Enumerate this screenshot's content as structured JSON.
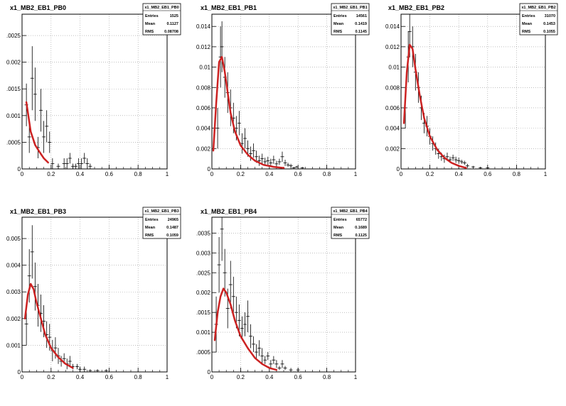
{
  "panels": [
    {
      "title": "x1_MB2_EB1_PB0",
      "stats": {
        "name": "x1_MB2_EB1_PB0",
        "rows": [
          [
            "Entries",
            "1525"
          ],
          [
            "Mean",
            "0.1127"
          ],
          [
            "RMS",
            "0.08708"
          ]
        ]
      },
      "ytick_labels": [
        "0",
        ".0005",
        "0.001",
        ".0015",
        "0.002",
        ".0025"
      ]
    },
    {
      "title": "x1_MB2_EB1_PB1",
      "stats": {
        "name": "x1_MB2_EB1_PB1",
        "rows": [
          [
            "Entries",
            "14561"
          ],
          [
            "Mean",
            "0.1419"
          ],
          [
            "RMS",
            "0.1145"
          ]
        ]
      },
      "ytick_labels": [
        "0",
        "0.002",
        "0.004",
        "0.006",
        "0.008",
        "0.01",
        "0.012",
        "0.014"
      ]
    },
    {
      "title": "x1_MB2_EB1_PB2",
      "stats": {
        "name": "x1_MB2_EB1_PB2",
        "rows": [
          [
            "Entries",
            "31070"
          ],
          [
            "Mean",
            "0.1453"
          ],
          [
            "RMS",
            "0.1055"
          ]
        ]
      },
      "ytick_labels": [
        "0",
        "0.002",
        "0.004",
        "0.006",
        "0.008",
        "0.01",
        "0.012",
        "0.014"
      ]
    },
    {
      "title": "x1_MB2_EB1_PB3",
      "stats": {
        "name": "x1_MB2_EB1_PB3",
        "rows": [
          [
            "Entries",
            "24965"
          ],
          [
            "Mean",
            "0.1487"
          ],
          [
            "RMS",
            "0.1059"
          ]
        ]
      },
      "ytick_labels": [
        "0",
        "0.001",
        "0.002",
        "0.003",
        "0.004",
        "0.005"
      ]
    },
    {
      "title": "x1_MB2_EB1_PB4",
      "stats": {
        "name": "x1_MB2_EB1_PB4",
        "rows": [
          [
            "Entries",
            "65772"
          ],
          [
            "Mean",
            "0.1689"
          ],
          [
            "RMS",
            "0.1125"
          ]
        ]
      },
      "ytick_labels": [
        "0",
        ".0005",
        "0.001",
        ".0015",
        "0.002",
        ".0025",
        "0.003",
        ".0035"
      ]
    }
  ],
  "xtick_labels": [
    "0",
    "0.2",
    "0.4",
    "0.6",
    "0.8",
    "1"
  ],
  "colors": {
    "fit": "#cc2222",
    "points": "#000000",
    "grid": "#999999",
    "frame": "#000000"
  },
  "chart_data": [
    {
      "type": "scatter",
      "title": "x1_MB2_EB1_PB0",
      "xlim": [
        0,
        1
      ],
      "ylim": [
        0,
        0.0029
      ],
      "grid": true,
      "points": [
        [
          0.03,
          0.0012,
          0.0004
        ],
        [
          0.05,
          0.0006,
          0.0003
        ],
        [
          0.07,
          0.0017,
          0.0006
        ],
        [
          0.09,
          0.0014,
          0.0005
        ],
        [
          0.11,
          0.0004,
          0.0002
        ],
        [
          0.13,
          0.0011,
          0.0004
        ],
        [
          0.15,
          0.0006,
          0.0003
        ],
        [
          0.17,
          0.0008,
          0.0003
        ],
        [
          0.19,
          0.0005,
          0.0002
        ],
        [
          0.21,
          0.0001,
          0.0001
        ],
        [
          0.25,
          5e-05,
          5e-05
        ],
        [
          0.29,
          0.0001,
          0.0001
        ],
        [
          0.31,
          0.0001,
          0.0001
        ],
        [
          0.33,
          0.0002,
          0.0001
        ],
        [
          0.35,
          5e-05,
          5e-05
        ],
        [
          0.37,
          5e-05,
          5e-05
        ],
        [
          0.39,
          0.0001,
          0.0001
        ],
        [
          0.41,
          0.0001,
          0.0001
        ],
        [
          0.43,
          0.0002,
          0.0001
        ],
        [
          0.45,
          0.0001,
          0.0001
        ],
        [
          0.47,
          5e-05,
          5e-05
        ]
      ],
      "fit": [
        [
          0.03,
          0.00125
        ],
        [
          0.06,
          0.0007
        ],
        [
          0.09,
          0.00045
        ],
        [
          0.12,
          0.00032
        ],
        [
          0.15,
          0.0002
        ],
        [
          0.18,
          0.00012
        ]
      ]
    },
    {
      "type": "scatter",
      "title": "x1_MB2_EB1_PB1",
      "xlim": [
        0,
        1
      ],
      "ylim": [
        0,
        0.0152
      ],
      "grid": true,
      "points": [
        [
          0.04,
          0.004,
          0.002
        ],
        [
          0.06,
          0.011,
          0.003
        ],
        [
          0.07,
          0.012,
          0.0025
        ],
        [
          0.09,
          0.009,
          0.002
        ],
        [
          0.11,
          0.0075,
          0.002
        ],
        [
          0.13,
          0.006,
          0.0018
        ],
        [
          0.15,
          0.005,
          0.0015
        ],
        [
          0.17,
          0.004,
          0.0012
        ],
        [
          0.19,
          0.0045,
          0.0012
        ],
        [
          0.21,
          0.0025,
          0.001
        ],
        [
          0.23,
          0.003,
          0.001
        ],
        [
          0.25,
          0.002,
          0.0008
        ],
        [
          0.27,
          0.0015,
          0.0007
        ],
        [
          0.29,
          0.0018,
          0.0007
        ],
        [
          0.31,
          0.0012,
          0.0006
        ],
        [
          0.33,
          0.0008,
          0.0005
        ],
        [
          0.35,
          0.001,
          0.0005
        ],
        [
          0.37,
          0.0007,
          0.0004
        ],
        [
          0.39,
          0.0008,
          0.0004
        ],
        [
          0.41,
          0.0006,
          0.0004
        ],
        [
          0.43,
          0.0009,
          0.0004
        ],
        [
          0.45,
          0.0005,
          0.0003
        ],
        [
          0.47,
          0.0007,
          0.0003
        ],
        [
          0.49,
          0.0012,
          0.0005
        ],
        [
          0.51,
          0.0006,
          0.0003
        ],
        [
          0.53,
          0.0004,
          0.0002
        ],
        [
          0.55,
          0.0003,
          0.0002
        ],
        [
          0.57,
          0.0001,
          0.0001
        ],
        [
          0.59,
          0.0002,
          0.0001
        ],
        [
          0.63,
          0.0001,
          0.0001
        ]
      ],
      "fit": [
        [
          0.01,
          0.0018
        ],
        [
          0.03,
          0.0065
        ],
        [
          0.05,
          0.0105
        ],
        [
          0.07,
          0.011
        ],
        [
          0.09,
          0.0095
        ],
        [
          0.11,
          0.0075
        ],
        [
          0.13,
          0.0055
        ],
        [
          0.16,
          0.0037
        ],
        [
          0.2,
          0.0023
        ],
        [
          0.25,
          0.0014
        ],
        [
          0.3,
          0.0008
        ],
        [
          0.36,
          0.0004
        ],
        [
          0.43,
          0.0002
        ],
        [
          0.5,
          0.0001
        ]
      ]
    },
    {
      "type": "scatter",
      "title": "x1_MB2_EB1_PB2",
      "xlim": [
        0,
        1
      ],
      "ylim": [
        0,
        0.0152
      ],
      "grid": true,
      "points": [
        [
          0.03,
          0.006,
          0.002
        ],
        [
          0.05,
          0.011,
          0.0025
        ],
        [
          0.06,
          0.0135,
          0.0025
        ],
        [
          0.08,
          0.012,
          0.002
        ],
        [
          0.1,
          0.0095,
          0.0018
        ],
        [
          0.12,
          0.008,
          0.0015
        ],
        [
          0.14,
          0.006,
          0.0012
        ],
        [
          0.16,
          0.0045,
          0.001
        ],
        [
          0.18,
          0.0042,
          0.001
        ],
        [
          0.2,
          0.0032,
          0.0008
        ],
        [
          0.22,
          0.0025,
          0.0007
        ],
        [
          0.24,
          0.002,
          0.0006
        ],
        [
          0.26,
          0.0015,
          0.0005
        ],
        [
          0.28,
          0.0012,
          0.0004
        ],
        [
          0.3,
          0.001,
          0.0004
        ],
        [
          0.32,
          0.0012,
          0.0004
        ],
        [
          0.34,
          0.0009,
          0.0003
        ],
        [
          0.36,
          0.0011,
          0.0003
        ],
        [
          0.38,
          0.0009,
          0.0003
        ],
        [
          0.4,
          0.0008,
          0.0003
        ],
        [
          0.42,
          0.0007,
          0.0002
        ],
        [
          0.44,
          0.0006,
          0.0002
        ],
        [
          0.46,
          0.0003,
          0.0002
        ],
        [
          0.5,
          0.0002,
          0.0001
        ],
        [
          0.55,
          0.0001,
          0.0001
        ],
        [
          0.6,
          0.0001,
          0.0001
        ]
      ],
      "fit": [
        [
          0.02,
          0.0045
        ],
        [
          0.04,
          0.0095
        ],
        [
          0.06,
          0.0122
        ],
        [
          0.08,
          0.0118
        ],
        [
          0.1,
          0.0098
        ],
        [
          0.13,
          0.0072
        ],
        [
          0.16,
          0.005
        ],
        [
          0.2,
          0.0032
        ],
        [
          0.25,
          0.0019
        ],
        [
          0.3,
          0.0011
        ],
        [
          0.35,
          0.0006
        ],
        [
          0.4,
          0.0003
        ],
        [
          0.45,
          0.0001
        ]
      ]
    },
    {
      "type": "scatter",
      "title": "x1_MB2_EB1_PB3",
      "xlim": [
        0,
        1
      ],
      "ylim": [
        0,
        0.0058
      ],
      "grid": true,
      "points": [
        [
          0.03,
          0.0018,
          0.0008
        ],
        [
          0.05,
          0.0036,
          0.001
        ],
        [
          0.07,
          0.0045,
          0.001
        ],
        [
          0.09,
          0.0032,
          0.0009
        ],
        [
          0.11,
          0.0025,
          0.0008
        ],
        [
          0.13,
          0.0022,
          0.0007
        ],
        [
          0.15,
          0.0019,
          0.0006
        ],
        [
          0.17,
          0.0014,
          0.0005
        ],
        [
          0.19,
          0.0013,
          0.0005
        ],
        [
          0.21,
          0.0008,
          0.0004
        ],
        [
          0.23,
          0.0009,
          0.0004
        ],
        [
          0.25,
          0.0006,
          0.0003
        ],
        [
          0.27,
          0.0004,
          0.0002
        ],
        [
          0.29,
          0.0005,
          0.0002
        ],
        [
          0.31,
          0.0003,
          0.0002
        ],
        [
          0.33,
          0.0004,
          0.0002
        ],
        [
          0.35,
          0.0002,
          0.0001
        ],
        [
          0.38,
          0.0002,
          0.0001
        ],
        [
          0.4,
          0.0001,
          0.0001
        ],
        [
          0.43,
          0.0001,
          0.0001
        ],
        [
          0.47,
          5e-05,
          5e-05
        ],
        [
          0.52,
          5e-05,
          5e-05
        ],
        [
          0.58,
          5e-05,
          5e-05
        ]
      ],
      "fit": [
        [
          0.02,
          0.002
        ],
        [
          0.04,
          0.0029
        ],
        [
          0.06,
          0.0033
        ],
        [
          0.08,
          0.0031
        ],
        [
          0.1,
          0.0026
        ],
        [
          0.13,
          0.002
        ],
        [
          0.16,
          0.0014
        ],
        [
          0.2,
          0.0009
        ],
        [
          0.25,
          0.00055
        ],
        [
          0.3,
          0.0003
        ],
        [
          0.35,
          0.00015
        ]
      ]
    },
    {
      "type": "scatter",
      "title": "x1_MB2_EB1_PB4",
      "xlim": [
        0,
        1
      ],
      "ylim": [
        0,
        0.0039
      ],
      "grid": true,
      "points": [
        [
          0.03,
          0.0012,
          0.0007
        ],
        [
          0.05,
          0.0027,
          0.0007
        ],
        [
          0.07,
          0.0036,
          0.0008
        ],
        [
          0.09,
          0.0025,
          0.0006
        ],
        [
          0.11,
          0.0016,
          0.0005
        ],
        [
          0.13,
          0.0022,
          0.0006
        ],
        [
          0.15,
          0.0019,
          0.0005
        ],
        [
          0.17,
          0.0015,
          0.0004
        ],
        [
          0.19,
          0.0013,
          0.0004
        ],
        [
          0.21,
          0.0011,
          0.0003
        ],
        [
          0.23,
          0.0012,
          0.0003
        ],
        [
          0.25,
          0.0014,
          0.0004
        ],
        [
          0.27,
          0.0009,
          0.0003
        ],
        [
          0.29,
          0.0007,
          0.0002
        ],
        [
          0.31,
          0.0005,
          0.0002
        ],
        [
          0.33,
          0.0006,
          0.0002
        ],
        [
          0.35,
          0.0004,
          0.0002
        ],
        [
          0.37,
          0.0003,
          0.0001
        ],
        [
          0.39,
          0.0004,
          0.0001
        ],
        [
          0.41,
          0.0002,
          0.0001
        ],
        [
          0.43,
          0.0003,
          0.0001
        ],
        [
          0.45,
          0.0002,
          0.0001
        ],
        [
          0.47,
          0.0001,
          5e-05
        ],
        [
          0.49,
          0.0002,
          0.0001
        ],
        [
          0.51,
          0.0001,
          5e-05
        ],
        [
          0.55,
          5e-05,
          5e-05
        ],
        [
          0.6,
          5e-05,
          5e-05
        ]
      ],
      "fit": [
        [
          0.02,
          0.0008
        ],
        [
          0.04,
          0.0015
        ],
        [
          0.06,
          0.0019
        ],
        [
          0.08,
          0.0021
        ],
        [
          0.1,
          0.002
        ],
        [
          0.13,
          0.0017
        ],
        [
          0.16,
          0.0013
        ],
        [
          0.2,
          0.0009
        ],
        [
          0.25,
          0.0006
        ],
        [
          0.3,
          0.00035
        ],
        [
          0.35,
          0.0002
        ],
        [
          0.4,
          0.0001
        ],
        [
          0.45,
          5e-05
        ]
      ]
    }
  ]
}
